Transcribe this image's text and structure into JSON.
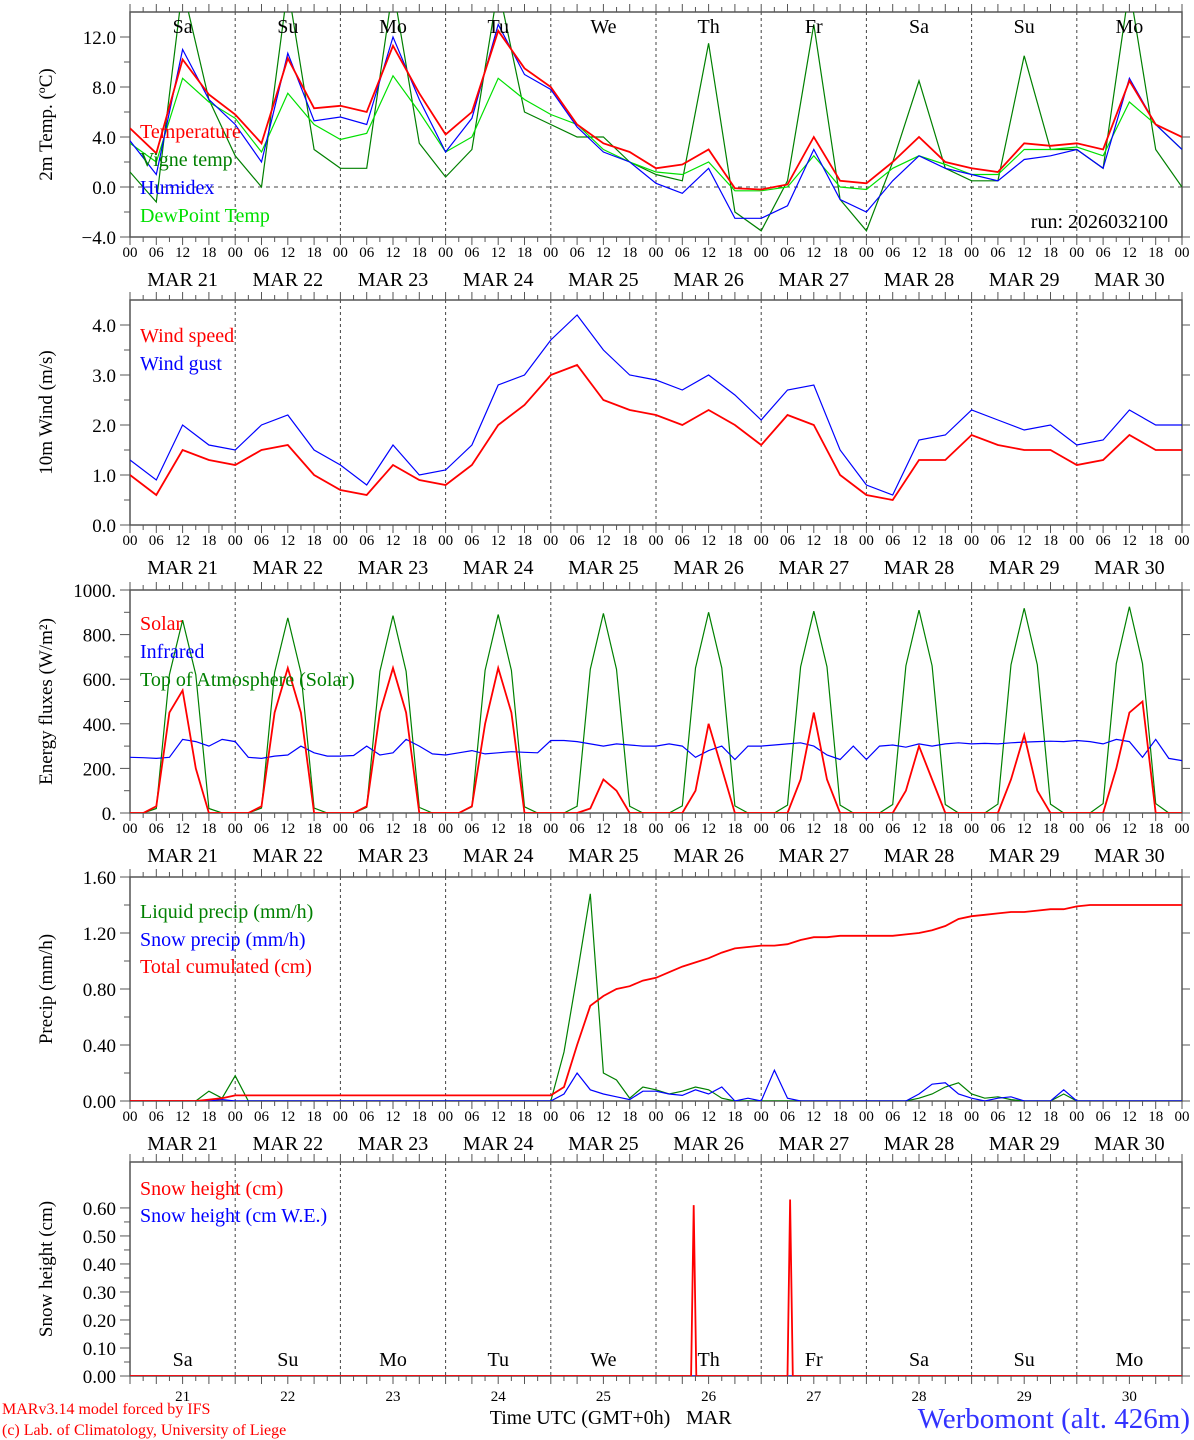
{
  "run_label": "run: 2026032100",
  "x_axis": {
    "days": [
      "MAR 21",
      "MAR 22",
      "MAR 23",
      "MAR 24",
      "MAR 25",
      "MAR 26",
      "MAR 27",
      "MAR 28",
      "MAR 29",
      "MAR 30"
    ],
    "day_numbers": [
      "21",
      "22",
      "23",
      "24",
      "25",
      "26",
      "27",
      "28",
      "29",
      "30"
    ],
    "weekdays": [
      "Sa",
      "Su",
      "Mo",
      "Tu",
      "We",
      "Th",
      "Fr",
      "Sa",
      "Su",
      "Mo"
    ],
    "weekend_color": "#ff0000",
    "hour_labels": [
      "00",
      "06",
      "12",
      "18"
    ],
    "final_hour_label": "00",
    "title": "Time UTC (GMT+0h)",
    "month": "MAR"
  },
  "footer": {
    "model": "MARv3.14 model forced by IFS",
    "credit": "(c) Lab. of Climatology, University of Liege",
    "station": "Werbomont (alt. 426m)"
  },
  "chart_data": [
    {
      "type": "line",
      "ylabel": "2m Temp. (ºC)",
      "ylim": [
        -4,
        14
      ],
      "yticks": [
        {
          "v": 12,
          "t": "12.0"
        },
        {
          "v": 8,
          "t": "8.0"
        },
        {
          "v": 4,
          "t": "4.0"
        },
        {
          "v": 0,
          "t": "0.0"
        },
        {
          "v": -4,
          "t": "−4.0"
        }
      ],
      "zero_line": true,
      "series": [
        {
          "name": "Vigne temp",
          "color": "#008000",
          "step_h": 6,
          "values": [
            1.2,
            -1.2,
            16,
            7,
            2.5,
            0,
            16,
            3,
            1.5,
            1.5,
            16,
            3.5,
            0.8,
            3,
            16,
            6,
            5,
            4,
            4,
            2,
            1,
            0.5,
            11.5,
            -2,
            -3.5,
            0.5,
            13,
            -1,
            -3.5,
            2,
            8.5,
            1.5,
            0.5,
            0.5,
            10.5,
            3,
            3,
            1.5,
            16,
            3,
            0
          ]
        },
        {
          "name": "DewPoint Temp",
          "color": "#00e000",
          "step_h": 6,
          "values": [
            3.5,
            2.0,
            8.7,
            6.8,
            5.5,
            2.8,
            7.5,
            5.0,
            3.8,
            4.3,
            8.9,
            6.0,
            2.8,
            4.0,
            8.7,
            7.0,
            5.8,
            5.0,
            3.0,
            2.0,
            1.2,
            1.0,
            2.0,
            -0.3,
            -0.3,
            0,
            2.5,
            0,
            -0.2,
            1.5,
            2.5,
            1.8,
            1.0,
            1.0,
            3.0,
            3.0,
            3.2,
            2.5,
            6.8,
            5.0,
            3.0
          ]
        },
        {
          "name": "Humidex",
          "color": "#0000ff",
          "step_h": 6,
          "values": [
            3.7,
            1.0,
            11.0,
            7.0,
            5.0,
            2.0,
            10.7,
            5.3,
            5.6,
            5.0,
            12.0,
            7.0,
            2.8,
            5.5,
            13.0,
            9.0,
            7.8,
            4.8,
            2.8,
            2.0,
            0.3,
            -0.5,
            1.5,
            -2.5,
            -2.5,
            -1.5,
            3.0,
            -1.0,
            -2.0,
            0.5,
            2.5,
            1.5,
            1.0,
            0.5,
            2.2,
            2.5,
            3.0,
            1.5,
            8.7,
            5.0,
            3.0
          ]
        },
        {
          "name": "Temperature",
          "color": "#ff0000",
          "step_h": 6,
          "values": [
            4.7,
            2.7,
            10.2,
            7.4,
            5.8,
            3.5,
            10.3,
            6.3,
            6.5,
            6.0,
            11.3,
            7.5,
            4.2,
            6.0,
            12.5,
            9.5,
            8.0,
            5.0,
            3.5,
            2.8,
            1.5,
            1.8,
            3.0,
            -0.1,
            -0.2,
            0.2,
            4.0,
            0.5,
            0.3,
            2.0,
            4.0,
            2.0,
            1.5,
            1.2,
            3.5,
            3.3,
            3.5,
            3.0,
            8.5,
            5.0,
            4.0
          ]
        }
      ],
      "legend_order": [
        "Temperature",
        "Vigne temp",
        "Humidex",
        "DewPoint Temp"
      ]
    },
    {
      "type": "line",
      "ylabel": "10m Wind (m/s)",
      "ylim": [
        0,
        4.5
      ],
      "yticks": [
        {
          "v": 4,
          "t": "4.0"
        },
        {
          "v": 3,
          "t": "3.0"
        },
        {
          "v": 2,
          "t": "2.0"
        },
        {
          "v": 1,
          "t": "1.0"
        },
        {
          "v": 0,
          "t": "0.0"
        }
      ],
      "series": [
        {
          "name": "Wind gust",
          "color": "#0000ff",
          "step_h": 6,
          "values": [
            1.3,
            0.9,
            2.0,
            1.6,
            1.5,
            2.0,
            2.2,
            1.5,
            1.2,
            0.8,
            1.6,
            1.0,
            1.1,
            1.6,
            2.8,
            3.0,
            3.7,
            4.2,
            3.5,
            3.0,
            2.9,
            2.7,
            3.0,
            2.6,
            2.1,
            2.7,
            2.8,
            1.5,
            0.8,
            0.6,
            1.7,
            1.8,
            2.3,
            2.1,
            1.9,
            2.0,
            1.6,
            1.7,
            2.3,
            2.0,
            2.0
          ]
        },
        {
          "name": "Wind speed",
          "color": "#ff0000",
          "step_h": 6,
          "values": [
            1.0,
            0.6,
            1.5,
            1.3,
            1.2,
            1.5,
            1.6,
            1.0,
            0.7,
            0.6,
            1.2,
            0.9,
            0.8,
            1.2,
            2.0,
            2.4,
            3.0,
            3.2,
            2.5,
            2.3,
            2.2,
            2.0,
            2.3,
            2.0,
            1.6,
            2.2,
            2.0,
            1.0,
            0.6,
            0.5,
            1.3,
            1.3,
            1.8,
            1.6,
            1.5,
            1.5,
            1.2,
            1.3,
            1.8,
            1.5,
            1.5
          ]
        }
      ],
      "legend_order": [
        "Wind speed",
        "Wind gust"
      ]
    },
    {
      "type": "line",
      "ylabel": "Energy fluxes (W/m²)",
      "ylim": [
        0,
        1000
      ],
      "yticks": [
        {
          "v": 1000,
          "t": "1000."
        },
        {
          "v": 800,
          "t": "800."
        },
        {
          "v": 600,
          "t": "600."
        },
        {
          "v": 400,
          "t": "400."
        },
        {
          "v": 200,
          "t": "200."
        },
        {
          "v": 0,
          "t": "0."
        }
      ],
      "series": [
        {
          "name": "Top of Atmosphere (Solar)",
          "color": "#008000",
          "step_h": 3,
          "values": [
            0,
            0,
            20,
            620,
            865,
            620,
            20,
            0,
            0,
            0,
            22,
            630,
            875,
            630,
            22,
            0,
            0,
            0,
            25,
            635,
            885,
            635,
            25,
            0,
            0,
            0,
            28,
            640,
            890,
            640,
            28,
            0,
            0,
            0,
            30,
            645,
            895,
            645,
            30,
            0,
            0,
            0,
            32,
            650,
            900,
            650,
            32,
            0,
            0,
            0,
            35,
            655,
            905,
            655,
            35,
            0,
            0,
            0,
            38,
            660,
            910,
            660,
            38,
            0,
            0,
            0,
            40,
            665,
            918,
            665,
            40,
            0,
            0,
            0,
            42,
            670,
            925,
            670,
            42,
            0,
            0
          ]
        },
        {
          "name": "Infrared",
          "color": "#0000ff",
          "step_h": 3,
          "values": [
            250,
            248,
            245,
            250,
            330,
            320,
            300,
            330,
            320,
            250,
            245,
            255,
            260,
            300,
            270,
            255,
            255,
            258,
            300,
            260,
            270,
            330,
            300,
            265,
            260,
            270,
            280,
            265,
            270,
            275,
            272,
            270,
            325,
            325,
            320,
            310,
            300,
            310,
            305,
            300,
            300,
            310,
            300,
            250,
            280,
            300,
            240,
            300,
            300,
            305,
            310,
            315,
            300,
            260,
            240,
            300,
            240,
            300,
            305,
            295,
            310,
            300,
            310,
            315,
            310,
            312,
            310,
            315,
            318,
            320,
            322,
            320,
            325,
            320,
            310,
            330,
            320,
            250,
            330,
            245,
            235
          ]
        },
        {
          "name": "Solar",
          "color": "#ff0000",
          "step_h": 3,
          "values": [
            0,
            0,
            30,
            450,
            550,
            200,
            0,
            0,
            0,
            0,
            30,
            450,
            650,
            450,
            0,
            0,
            0,
            0,
            30,
            450,
            650,
            450,
            0,
            0,
            0,
            0,
            30,
            400,
            650,
            450,
            0,
            0,
            0,
            0,
            0,
            20,
            150,
            100,
            0,
            0,
            0,
            0,
            0,
            100,
            400,
            200,
            0,
            0,
            0,
            0,
            0,
            150,
            450,
            150,
            0,
            0,
            0,
            0,
            0,
            100,
            300,
            150,
            0,
            0,
            0,
            0,
            0,
            150,
            350,
            100,
            0,
            0,
            0,
            0,
            0,
            200,
            450,
            500,
            0,
            0,
            0
          ]
        }
      ],
      "legend_order": [
        "Solar",
        "Infrared",
        "Top of Atmosphere (Solar)"
      ]
    },
    {
      "type": "line",
      "ylabel": "Precip (mm/h)",
      "ylim": [
        0,
        1.6
      ],
      "yticks": [
        {
          "v": 1.6,
          "t": "1.60"
        },
        {
          "v": 1.2,
          "t": "1.20"
        },
        {
          "v": 0.8,
          "t": "0.80"
        },
        {
          "v": 0.4,
          "t": "0.40"
        },
        {
          "v": 0,
          "t": "0.00"
        }
      ],
      "series": [
        {
          "name": "Liquid precip (mm/h)",
          "color": "#008000",
          "step_h": 3,
          "values": [
            0,
            0,
            0,
            0,
            0,
            0,
            0.07,
            0.02,
            0.18,
            0,
            0,
            0,
            0,
            0,
            0,
            0,
            0,
            0,
            0,
            0,
            0,
            0,
            0,
            0,
            0,
            0,
            0,
            0,
            0,
            0,
            0,
            0,
            0,
            0.35,
            0.9,
            1.48,
            0.2,
            0.15,
            0.02,
            0.1,
            0.08,
            0.05,
            0.07,
            0.1,
            0.08,
            0.02,
            0,
            0,
            0,
            0,
            0,
            0,
            0,
            0,
            0,
            0,
            0,
            0,
            0,
            0,
            0.02,
            0.05,
            0.1,
            0.13,
            0.05,
            0.02,
            0.03,
            0.01,
            0,
            0,
            0,
            0.05,
            0,
            0,
            0,
            0,
            0,
            0,
            0,
            0,
            0
          ]
        },
        {
          "name": "Snow precip (mm/h)",
          "color": "#0000ff",
          "step_h": 3,
          "values": [
            0,
            0,
            0,
            0,
            0,
            0,
            0,
            0.01,
            0,
            0,
            0,
            0,
            0,
            0,
            0,
            0,
            0,
            0,
            0,
            0,
            0,
            0,
            0,
            0,
            0,
            0,
            0,
            0,
            0,
            0,
            0,
            0,
            0,
            0.05,
            0.2,
            0.08,
            0.05,
            0.03,
            0.01,
            0.07,
            0.07,
            0.05,
            0.04,
            0.08,
            0.05,
            0.1,
            0,
            0.02,
            0,
            0.22,
            0.02,
            0,
            0,
            0,
            0,
            0,
            0,
            0,
            0,
            0,
            0.05,
            0.12,
            0.13,
            0.05,
            0.02,
            0,
            0.02,
            0.03,
            0,
            0,
            0,
            0.08,
            0,
            0,
            0,
            0,
            0,
            0,
            0,
            0,
            0
          ]
        },
        {
          "name": "Total cumulated (cm)",
          "color": "#ff0000",
          "step_h": 3,
          "values": [
            0,
            0,
            0,
            0,
            0,
            0,
            0.01,
            0.02,
            0.04,
            0.04,
            0.04,
            0.04,
            0.04,
            0.04,
            0.04,
            0.04,
            0.04,
            0.04,
            0.04,
            0.04,
            0.04,
            0.04,
            0.04,
            0.04,
            0.04,
            0.04,
            0.04,
            0.04,
            0.04,
            0.04,
            0.04,
            0.04,
            0.04,
            0.1,
            0.4,
            0.68,
            0.75,
            0.8,
            0.82,
            0.86,
            0.88,
            0.92,
            0.96,
            0.99,
            1.02,
            1.06,
            1.09,
            1.1,
            1.11,
            1.11,
            1.12,
            1.15,
            1.17,
            1.17,
            1.18,
            1.18,
            1.18,
            1.18,
            1.18,
            1.19,
            1.2,
            1.22,
            1.25,
            1.3,
            1.32,
            1.33,
            1.34,
            1.35,
            1.35,
            1.36,
            1.37,
            1.37,
            1.39,
            1.4,
            1.4,
            1.4,
            1.4,
            1.4,
            1.4,
            1.4,
            1.4
          ]
        }
      ],
      "legend_order": [
        "Liquid precip (mm/h)",
        "Snow precip (mm/h)",
        "Total cumulated (cm)"
      ]
    },
    {
      "type": "line",
      "ylabel": "Snow height (cm)",
      "ylim": [
        0,
        0.764
      ],
      "yticks": [
        {
          "v": 0.6,
          "t": "0.60"
        },
        {
          "v": 0.5,
          "t": "0.50"
        },
        {
          "v": 0.4,
          "t": "0.40"
        },
        {
          "v": 0.3,
          "t": "0.30"
        },
        {
          "v": 0.2,
          "t": "0.20"
        },
        {
          "v": 0.1,
          "t": "0.10"
        },
        {
          "v": 0,
          "t": "0.00"
        }
      ],
      "series": [
        {
          "name": "Snow height (cm W.E.)",
          "color": "#0000ff",
          "points": [
            [
              0,
              0
            ],
            [
              240,
              0
            ]
          ]
        },
        {
          "name": "Snow height (cm)",
          "color": "#ff0000",
          "points": [
            [
              0,
              0
            ],
            [
              128,
              0
            ],
            [
              128.6,
              0.61
            ],
            [
              129.2,
              0
            ],
            [
              150,
              0
            ],
            [
              150.6,
              0.63
            ],
            [
              151.2,
              0
            ],
            [
              240,
              0
            ]
          ]
        }
      ],
      "legend_order": [
        "Snow height (cm)",
        "Snow height (cm W.E.)"
      ]
    }
  ]
}
